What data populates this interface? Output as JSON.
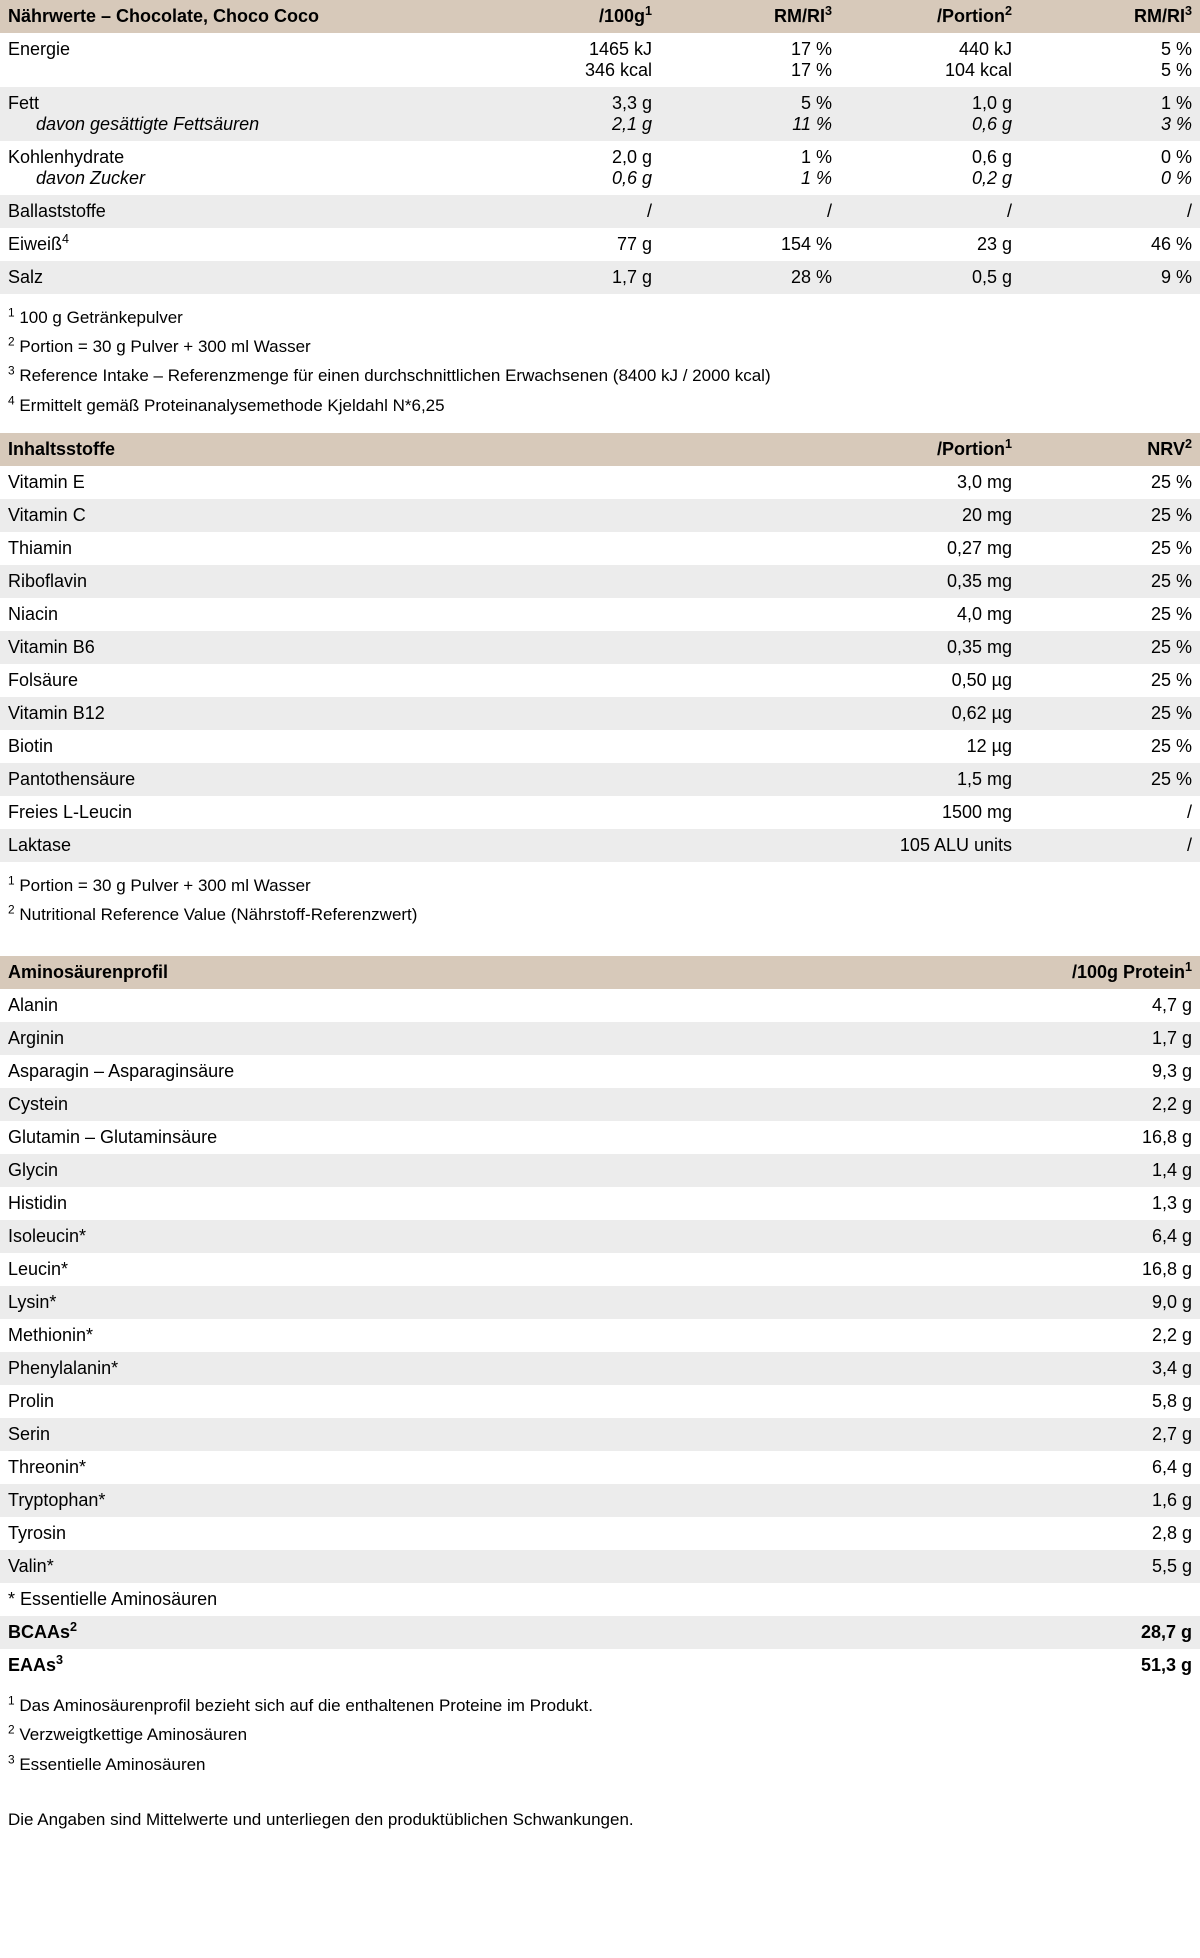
{
  "nutrition": {
    "header": {
      "title_prefix": "Nährwerte – ",
      "title_flavor": "Chocolate, Choco Coco",
      "col1": "/100g",
      "col1_sup": "1",
      "col2": "RM/RI",
      "col2_sup": "3",
      "col3": "/Portion",
      "col3_sup": "2",
      "col4": "RM/RI",
      "col4_sup": "3"
    },
    "rows": [
      {
        "label": "Energie",
        "c1l1": "1465 kJ",
        "c1l2": "346 kcal",
        "c2l1": "17 %",
        "c2l2": "17 %",
        "c3l1": "440 kJ",
        "c3l2": "104 kcal",
        "c4l1": "5 %",
        "c4l2": "5 %",
        "alt": false,
        "twoLine": true
      },
      {
        "label": "Fett",
        "sublabel": "davon gesättigte Fettsäuren",
        "c1": "3,3 g",
        "sc1": "2,1 g",
        "c2": "5 %",
        "sc2": "11 %",
        "c3": "1,0 g",
        "sc3": "0,6 g",
        "c4": "1 %",
        "sc4": "3 %",
        "alt": true,
        "withSub": true
      },
      {
        "label": "Kohlenhydrate",
        "sublabel": "davon Zucker",
        "c1": "2,0 g",
        "sc1": "0,6 g",
        "c2": "1 %",
        "sc2": "1 %",
        "c3": "0,6 g",
        "sc3": "0,2 g",
        "c4": "0 %",
        "sc4": "0 %",
        "alt": false,
        "withSub": true
      },
      {
        "label": "Ballaststoffe",
        "c1": "/",
        "c2": "/",
        "c3": "/",
        "c4": "/",
        "alt": true
      },
      {
        "label": "Eiweiß",
        "label_sup": "4",
        "c1": "77 g",
        "c2": "154 %",
        "c3": "23 g",
        "c4": "46 %",
        "alt": false
      },
      {
        "label": "Salz",
        "c1": "1,7 g",
        "c2": "28 %",
        "c3": "0,5 g",
        "c4": "9 %",
        "alt": true
      }
    ],
    "footnotes": [
      {
        "sup": "1",
        "text": "100 g Getränkepulver"
      },
      {
        "sup": "2",
        "text": "Portion = 30 g Pulver + 300 ml Wasser"
      },
      {
        "sup": "3",
        "text": "Reference Intake – Referenzmenge für einen durchschnittlichen Erwachsenen (8400 kJ / 2000 kcal)"
      },
      {
        "sup": "4",
        "text": "Ermittelt gemäß Proteinanalysemethode Kjeldahl N*6,25"
      }
    ]
  },
  "ingredients": {
    "header": {
      "title": "Inhaltsstoffe",
      "col1": "/Portion",
      "col1_sup": "1",
      "col2": "NRV",
      "col2_sup": "2"
    },
    "rows": [
      {
        "label": "Vitamin E",
        "c1": "3,0 mg",
        "c2": "25 %",
        "alt": false
      },
      {
        "label": "Vitamin C",
        "c1": "20 mg",
        "c2": "25 %",
        "alt": true
      },
      {
        "label": "Thiamin",
        "c1": "0,27 mg",
        "c2": "25 %",
        "alt": false
      },
      {
        "label": "Riboflavin",
        "c1": "0,35 mg",
        "c2": "25 %",
        "alt": true
      },
      {
        "label": "Niacin",
        "c1": "4,0 mg",
        "c2": "25 %",
        "alt": false
      },
      {
        "label": "Vitamin B6",
        "c1": "0,35 mg",
        "c2": "25 %",
        "alt": true
      },
      {
        "label": "Folsäure",
        "c1": "0,50 µg",
        "c2": "25 %",
        "alt": false
      },
      {
        "label": "Vitamin B12",
        "c1": "0,62 µg",
        "c2": "25 %",
        "alt": true
      },
      {
        "label": "Biotin",
        "c1": "12 µg",
        "c2": "25 %",
        "alt": false
      },
      {
        "label": "Pantothensäure",
        "c1": "1,5 mg",
        "c2": "25 %",
        "alt": true
      },
      {
        "label": "Freies L-Leucin",
        "c1": "1500 mg",
        "c2": "/",
        "alt": false
      },
      {
        "label": "Laktase",
        "c1": "105 ALU units",
        "c2": "/",
        "alt": true
      }
    ],
    "footnotes": [
      {
        "sup": "1",
        "text": "Portion = 30 g Pulver + 300 ml Wasser"
      },
      {
        "sup": "2",
        "text": "Nutritional Reference Value (Nährstoff-Referenzwert)"
      }
    ]
  },
  "amino": {
    "header": {
      "title": "Aminosäurenprofil",
      "col1": "/100g Protein",
      "col1_sup": "1"
    },
    "rows": [
      {
        "label": "Alanin",
        "c1": "4,7 g",
        "alt": false
      },
      {
        "label": "Arginin",
        "c1": "1,7 g",
        "alt": true
      },
      {
        "label": "Asparagin – Asparaginsäure",
        "c1": "9,3 g",
        "alt": false
      },
      {
        "label": "Cystein",
        "c1": "2,2 g",
        "alt": true
      },
      {
        "label": "Glutamin – Glutaminsäure",
        "c1": "16,8 g",
        "alt": false
      },
      {
        "label": "Glycin",
        "c1": "1,4 g",
        "alt": true
      },
      {
        "label": "Histidin",
        "c1": "1,3 g",
        "alt": false
      },
      {
        "label": "Isoleucin*",
        "c1": "6,4 g",
        "alt": true
      },
      {
        "label": "Leucin*",
        "c1": "16,8 g",
        "alt": false
      },
      {
        "label": "Lysin*",
        "c1": "9,0 g",
        "alt": true
      },
      {
        "label": "Methionin*",
        "c1": "2,2 g",
        "alt": false
      },
      {
        "label": "Phenylalanin*",
        "c1": "3,4 g",
        "alt": true
      },
      {
        "label": "Prolin",
        "c1": "5,8 g",
        "alt": false
      },
      {
        "label": "Serin",
        "c1": "2,7 g",
        "alt": true
      },
      {
        "label": "Threonin*",
        "c1": "6,4 g",
        "alt": false
      },
      {
        "label": "Tryptophan*",
        "c1": "1,6 g",
        "alt": true
      },
      {
        "label": "Tyrosin",
        "c1": "2,8 g",
        "alt": false
      },
      {
        "label": "Valin*",
        "c1": "5,5 g",
        "alt": true
      }
    ],
    "essential_note": "* Essentielle Aminosäuren",
    "summary": [
      {
        "label": "BCAAs",
        "sup": "2",
        "c1": "28,7 g",
        "alt": true
      },
      {
        "label": "EAAs",
        "sup": "3",
        "c1": "51,3 g",
        "alt": false
      }
    ],
    "footnotes": [
      {
        "sup": "1",
        "text": "Das Aminosäurenprofil bezieht sich auf die enthaltenen Proteine im Produkt."
      },
      {
        "sup": "2",
        "text": "Verzweigtkettige Aminosäuren"
      },
      {
        "sup": "3",
        "text": "Essentielle Aminosäuren"
      }
    ]
  },
  "final_note": "Die Angaben sind Mittelwerte und unterliegen den produktüblichen Schwankungen."
}
